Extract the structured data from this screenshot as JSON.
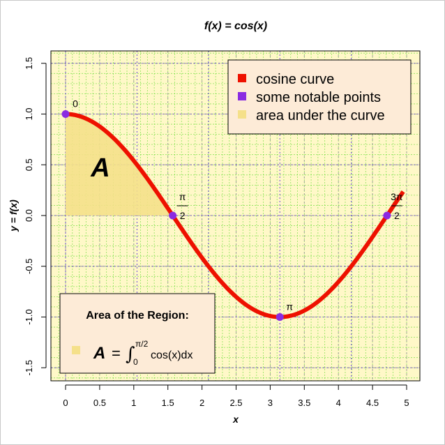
{
  "chart_data": {
    "type": "line",
    "title": "f(x) = cos(x)",
    "xlabel": "x",
    "ylabel": "y = f(x)",
    "xlim": [
      -0.1,
      5.0
    ],
    "ylim": [
      -1.6,
      1.6
    ],
    "x_ticks": [
      0,
      0.5,
      1,
      1.5,
      2,
      2.5,
      3,
      3.5,
      4,
      4.5,
      5
    ],
    "x_tick_labels": [
      "0",
      "0.5",
      "1",
      "1.5",
      "2",
      "2.5",
      "3",
      "3.5",
      "4",
      "4.5",
      "5"
    ],
    "y_ticks": [
      -1.5,
      -1.0,
      -0.5,
      0.0,
      0.5,
      1.0,
      1.5
    ],
    "y_tick_labels": [
      "-1.5",
      "-1.0",
      "-0.5",
      "0.0",
      "0.5",
      "1.0",
      "1.5"
    ],
    "grid": true,
    "series": [
      {
        "name": "cosine curve",
        "function": "cos(x)",
        "x_range": [
          0,
          4.95
        ],
        "color": "#ee1100"
      }
    ],
    "points": [
      {
        "x": 0,
        "y": 1,
        "label_num": "0",
        "label_den": ""
      },
      {
        "x": 1.5708,
        "y": 0,
        "label_num": "π",
        "label_den": "2"
      },
      {
        "x": 3.1416,
        "y": -1,
        "label_num": "π",
        "label_den": ""
      },
      {
        "x": 4.7124,
        "y": 0,
        "label_num": "3π",
        "label_den": "2"
      }
    ],
    "shaded_area": {
      "from": 0,
      "to": 1.5708,
      "label": "A"
    },
    "legend": {
      "position": "top-right",
      "items": [
        {
          "label": "cosine curve",
          "color": "#ee1100"
        },
        {
          "label": "some notable points",
          "color": "#8a2be2"
        },
        {
          "label": "area under the curve",
          "color": "#f5e08a"
        }
      ]
    },
    "area_box": {
      "position": "bottom-left",
      "title": "Area of the Region:",
      "symbol": "A",
      "equals": "=",
      "upper_limit": "π/2",
      "lower_limit": "0",
      "integrand": "cos(x)dx"
    }
  },
  "colors": {
    "curve": "#ee1100",
    "points": "#8a2be2",
    "area": "#f5e08a",
    "panel_bg": "#fff8c8",
    "legend_bg": "#fdebd7",
    "grid_green": "#66dd33",
    "grid_blue": "#6644dd"
  }
}
